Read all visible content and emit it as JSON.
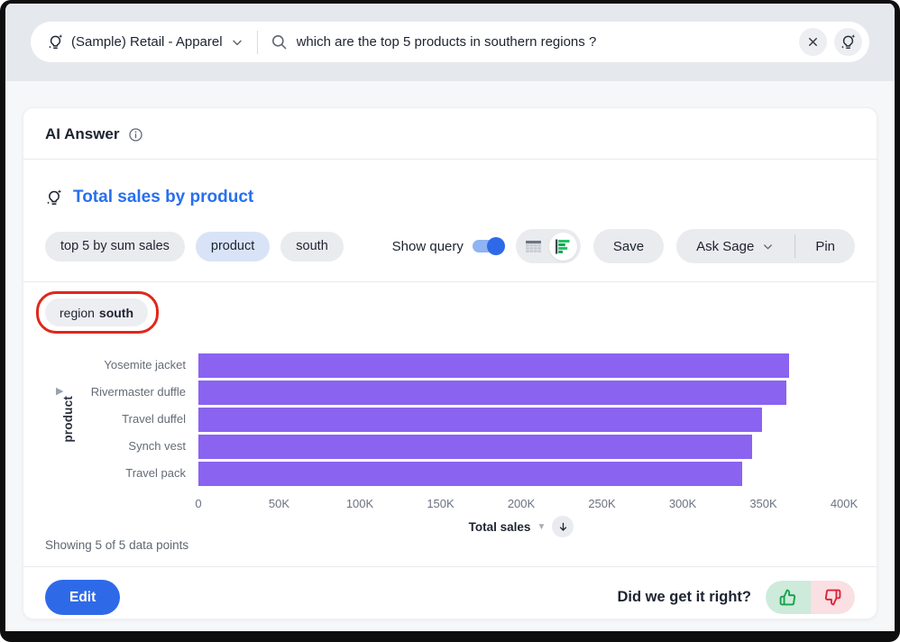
{
  "topbar": {
    "datasource": "(Sample) Retail - Apparel",
    "query": "which are the top 5 products in southern regions ?"
  },
  "panel": {
    "title": "AI Answer",
    "answer_title": "Total sales by product",
    "chips": [
      {
        "label": "top 5 by sum sales",
        "variant": "gray"
      },
      {
        "label": "product",
        "variant": "blue"
      },
      {
        "label": "south",
        "variant": "gray"
      }
    ],
    "show_query_label": "Show query",
    "show_query_on": true,
    "save_label": "Save",
    "ask_sage_label": "Ask Sage",
    "pin_label": "Pin",
    "filter_chip": {
      "dimension": "region",
      "value": "south"
    },
    "showing_text": "Showing 5 of 5 data points",
    "edit_label": "Edit",
    "feedback_label": "Did we get it right?"
  },
  "chart_data": {
    "type": "bar",
    "orientation": "horizontal",
    "title": "Total sales by product",
    "categories": [
      "Yosemite jacket",
      "Rivermaster duffle",
      "Travel duffel",
      "Synch vest",
      "Travel pack"
    ],
    "values": [
      366000,
      364000,
      349000,
      343000,
      337000
    ],
    "xlabel": "Total sales",
    "ylabel": "product",
    "xlim": [
      0,
      400000
    ],
    "xtick_labels": [
      "0",
      "50K",
      "100K",
      "150K",
      "200K",
      "250K",
      "300K",
      "350K",
      "400K"
    ],
    "grid": false,
    "bar_color": "#8a63f0"
  },
  "colors": {
    "accent_blue": "#2e6ae8",
    "title_blue": "#2770ef",
    "bar_purple": "#8a63f0",
    "chart_icon_green": "#21c063",
    "thumb_up_green": "#16a34a",
    "thumb_down_red": "#dd2438",
    "annotation_red": "#e0271c",
    "topbar_gray": "#e5e8ec"
  }
}
